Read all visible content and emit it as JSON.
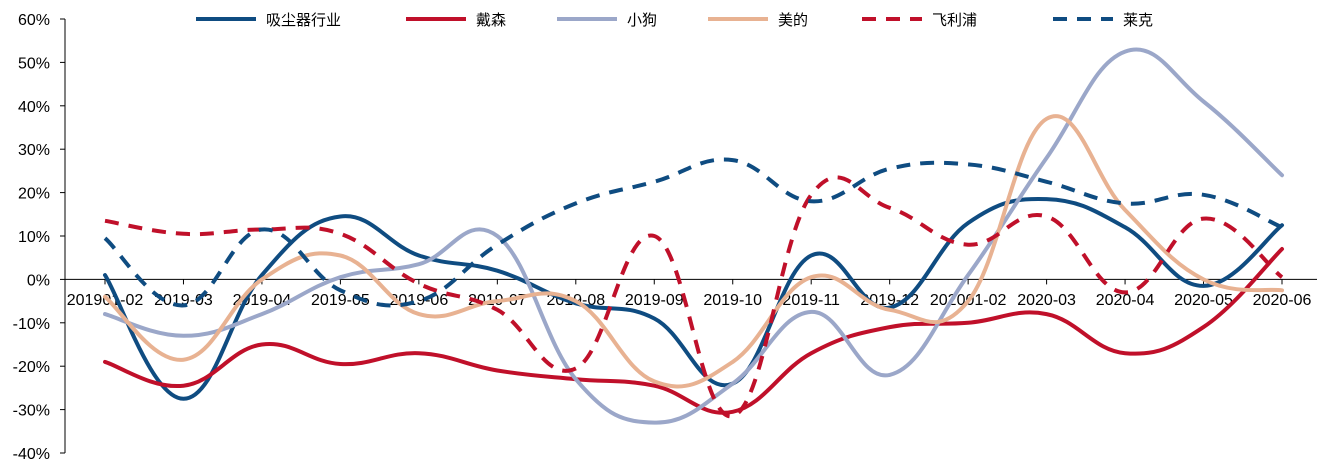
{
  "chart_data": {
    "type": "line",
    "title": "",
    "xlabel": "",
    "ylabel": "",
    "categories": [
      "201901-02",
      "2019-03",
      "2019-04",
      "2019-05",
      "2019-06",
      "2019-07",
      "2019-08",
      "2019-09",
      "2019-10",
      "2019-11",
      "2019-12",
      "202001-02",
      "2020-03",
      "2020-04",
      "2020-05",
      "2020-06"
    ],
    "ylim": [
      -40,
      60
    ],
    "yticks": [
      "-40%",
      "-30%",
      "-20%",
      "-10%",
      "0%",
      "10%",
      "20%",
      "30%",
      "40%",
      "50%",
      "60%"
    ],
    "legend": "top",
    "grid": false,
    "series": [
      {
        "name": "吸尘器行业",
        "color": "#0f4c81",
        "dash": "solid",
        "values": [
          1,
          -27.5,
          1,
          14.5,
          5.5,
          2,
          -5.5,
          -9,
          -24,
          5.5,
          -6.5,
          13,
          18.5,
          12,
          -1.5,
          12.5
        ]
      },
      {
        "name": "戴森",
        "color": "#c0102a",
        "dash": "solid",
        "values": [
          -19,
          -24.5,
          -15,
          -19.5,
          -17,
          -21,
          -23,
          -24.5,
          -30.5,
          -17,
          -11,
          -10,
          -8,
          -17,
          -11,
          7
        ]
      },
      {
        "name": "小狗",
        "color": "#9ba7c9",
        "dash": "solid",
        "values": [
          -8,
          -13,
          -8,
          0.5,
          3.5,
          10,
          -23,
          -33,
          -24,
          -7.5,
          -22,
          1,
          28,
          52.5,
          41,
          24
        ]
      },
      {
        "name": "美的",
        "color": "#e8b292",
        "dash": "solid",
        "values": [
          -4,
          -18.5,
          0,
          5.5,
          -8,
          -5,
          -5,
          -23.5,
          -19,
          0.5,
          -7,
          -5,
          37,
          16,
          0,
          -2.5
        ]
      },
      {
        "name": "飞利浦",
        "color": "#c0102a",
        "dash": "dashed",
        "values": [
          13.5,
          10.5,
          11.5,
          10.5,
          -1,
          -7,
          -20.5,
          10,
          -31.5,
          19.5,
          16.5,
          8,
          14.5,
          -3,
          14,
          0.5
        ]
      },
      {
        "name": "莱克",
        "color": "#0f4c81",
        "dash": "dashed",
        "values": [
          9.5,
          -6,
          11.5,
          -2.5,
          -5,
          8,
          17.5,
          22.5,
          27.5,
          18,
          25.5,
          26.5,
          22.5,
          17.5,
          19.5,
          12
        ]
      }
    ]
  }
}
